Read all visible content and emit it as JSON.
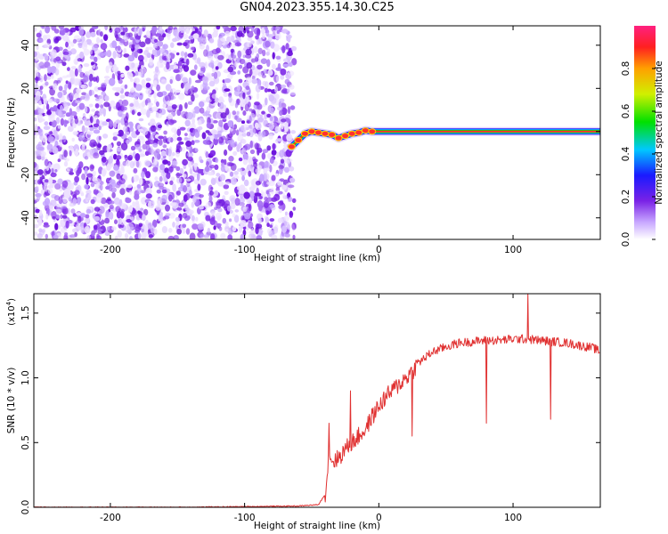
{
  "title": "GN04.2023.355.14.30.C25",
  "colors": {
    "speckle": "#7a22e6",
    "snr_line": "#e03030",
    "axis": "#000000"
  },
  "chart_data": [
    {
      "type": "heatmap",
      "xlabel": "Height of straight line (km)",
      "ylabel": "Frequency (Hz)",
      "xlim": [
        -257,
        165
      ],
      "ylim": [
        -50,
        49
      ],
      "xticks": [
        -200,
        -100,
        0,
        100
      ],
      "yticks": [
        -40,
        -20,
        0,
        20,
        40
      ],
      "noise_region_x": [
        -257,
        -63
      ],
      "signal_line": {
        "x": [
          -65,
          -60,
          -55,
          -50,
          -45,
          -40,
          -35,
          -30,
          -25,
          -20,
          -15,
          -10,
          -5,
          0,
          20,
          50,
          100,
          165
        ],
        "freq": [
          -7,
          -4,
          -1,
          0,
          -0.5,
          -1,
          -1.5,
          -3,
          -2,
          -1,
          -0.5,
          0.5,
          0,
          0,
          0,
          0,
          0,
          0
        ]
      },
      "colorbar": {
        "label": "Normalized spectral amplitude",
        "range": [
          0.0,
          1.0
        ],
        "ticks": [
          0.0,
          0.2,
          0.4,
          0.6,
          0.8
        ],
        "tick_labels": [
          "0.0",
          "0.2",
          "0.4",
          "0.6",
          "0.8"
        ]
      },
      "grid": false
    },
    {
      "type": "line",
      "xlabel": "Height of straight line (km)",
      "ylabel": "SNR (10 * v/v)",
      "exponent_label": "(x10",
      "exponent_sup": "4",
      "xlim": [
        -257,
        165
      ],
      "ylim": [
        0,
        1.65
      ],
      "xticks": [
        -200,
        -100,
        0,
        100
      ],
      "yticks": [
        0.0,
        0.5,
        1.0,
        1.5
      ],
      "ytick_labels": [
        "0.0",
        "0.5",
        "1.0",
        "1.5"
      ],
      "series": [
        {
          "x": [
            -257,
            -240,
            -200,
            -150,
            -100,
            -60,
            -45,
            -40,
            -38,
            -37,
            -35,
            -30,
            -25,
            -20,
            -15,
            -10,
            -5,
            0,
            5,
            10,
            15,
            20,
            25,
            30,
            40,
            50,
            60,
            70,
            80,
            90,
            100,
            110,
            120,
            130,
            140,
            150,
            160,
            165
          ],
          "y": [
            0.0,
            0.0,
            0.0,
            0.0,
            0.005,
            0.01,
            0.02,
            0.1,
            0.3,
            0.45,
            0.35,
            0.38,
            0.45,
            0.5,
            0.55,
            0.6,
            0.7,
            0.78,
            0.85,
            0.9,
            0.95,
            1.0,
            1.05,
            1.12,
            1.2,
            1.24,
            1.27,
            1.28,
            1.29,
            1.29,
            1.3,
            1.3,
            1.29,
            1.28,
            1.27,
            1.25,
            1.23,
            1.2
          ]
        }
      ],
      "spikes": [
        {
          "x": -37,
          "y": 0.65
        },
        {
          "x": -21,
          "y": 0.9
        },
        {
          "x": 25,
          "y": 0.55
        },
        {
          "x": 80,
          "y": 0.65
        },
        {
          "x": 111,
          "y": 1.65
        },
        {
          "x": 128,
          "y": 0.68
        }
      ],
      "grid": false
    }
  ]
}
